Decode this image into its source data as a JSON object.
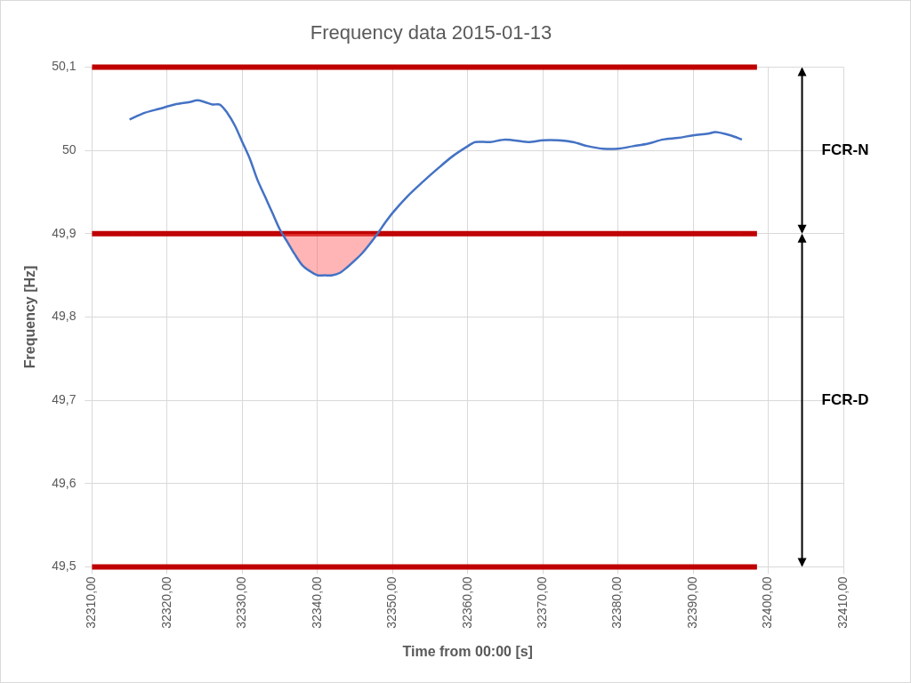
{
  "chart_data": {
    "type": "line",
    "title": "Frequency data 2015-01-13",
    "x_label": "Time from 00:00 [s]",
    "y_label": "Frequency [Hz]",
    "grid": true,
    "color": "#4472c4",
    "x": [
      32315,
      32317,
      32319,
      32321,
      32323,
      32324,
      32325,
      32326,
      32327,
      32328,
      32329,
      32330,
      32331,
      32332,
      32333,
      32334,
      32335,
      32336,
      32337,
      32338,
      32339,
      32340,
      32341,
      32342,
      32343,
      32344,
      32345,
      32346,
      32347,
      32348,
      32349,
      32350,
      32352,
      32354,
      32356,
      32358,
      32360,
      32361,
      32363,
      32365,
      32368,
      32370,
      32372,
      32374,
      32376,
      32378,
      32380,
      32382,
      32384,
      32386,
      32388,
      32390,
      32392,
      32393,
      32395,
      32396.5
    ],
    "values": [
      50.037,
      50.045,
      50.05,
      50.055,
      50.058,
      50.06,
      50.058,
      50.055,
      50.055,
      50.045,
      50.03,
      50.01,
      49.99,
      49.965,
      49.945,
      49.925,
      49.905,
      49.89,
      49.875,
      49.862,
      49.855,
      49.85,
      49.85,
      49.85,
      49.853,
      49.86,
      49.868,
      49.877,
      49.888,
      49.9,
      49.913,
      49.925,
      49.945,
      49.962,
      49.978,
      49.993,
      50.005,
      50.01,
      50.01,
      50.013,
      50.01,
      50.012,
      50.012,
      50.01,
      50.005,
      50.002,
      50.002,
      50.005,
      50.008,
      50.013,
      50.015,
      50.018,
      50.02,
      50.022,
      50.018,
      50.013
    ],
    "xlim": [
      32310,
      32410
    ],
    "xticks": [
      {
        "value": 32310,
        "label": "32310,00"
      },
      {
        "value": 32320,
        "label": "32320,00"
      },
      {
        "value": 32330,
        "label": "32330,00"
      },
      {
        "value": 32340,
        "label": "32340,00"
      },
      {
        "value": 32350,
        "label": "32350,00"
      },
      {
        "value": 32360,
        "label": "32360,00"
      },
      {
        "value": 32370,
        "label": "32370,00"
      },
      {
        "value": 32380,
        "label": "32380,00"
      },
      {
        "value": 32390,
        "label": "32390,00"
      },
      {
        "value": 32400,
        "label": "32400,00"
      },
      {
        "value": 32410,
        "label": "32410,00"
      }
    ],
    "ylim": [
      49.5,
      50.1
    ],
    "yticks": [
      {
        "value": 49.5,
        "label": "49,5"
      },
      {
        "value": 49.6,
        "label": "49,6"
      },
      {
        "value": 49.7,
        "label": "49,7"
      },
      {
        "value": 49.8,
        "label": "49,8"
      },
      {
        "value": 49.9,
        "label": "49,9"
      },
      50,
      {
        "value": 50.1,
        "label": "50,1"
      }
    ],
    "reference_lines": {
      "values": [
        50.1,
        49.9,
        49.5
      ],
      "color": "#c00000"
    },
    "highlight_below": 49.9,
    "annotations": [
      {
        "text": "FCR-N",
        "from": 49.9,
        "to": 50.1
      },
      {
        "text": "FCR-D",
        "from": 49.5,
        "to": 49.9
      }
    ]
  }
}
